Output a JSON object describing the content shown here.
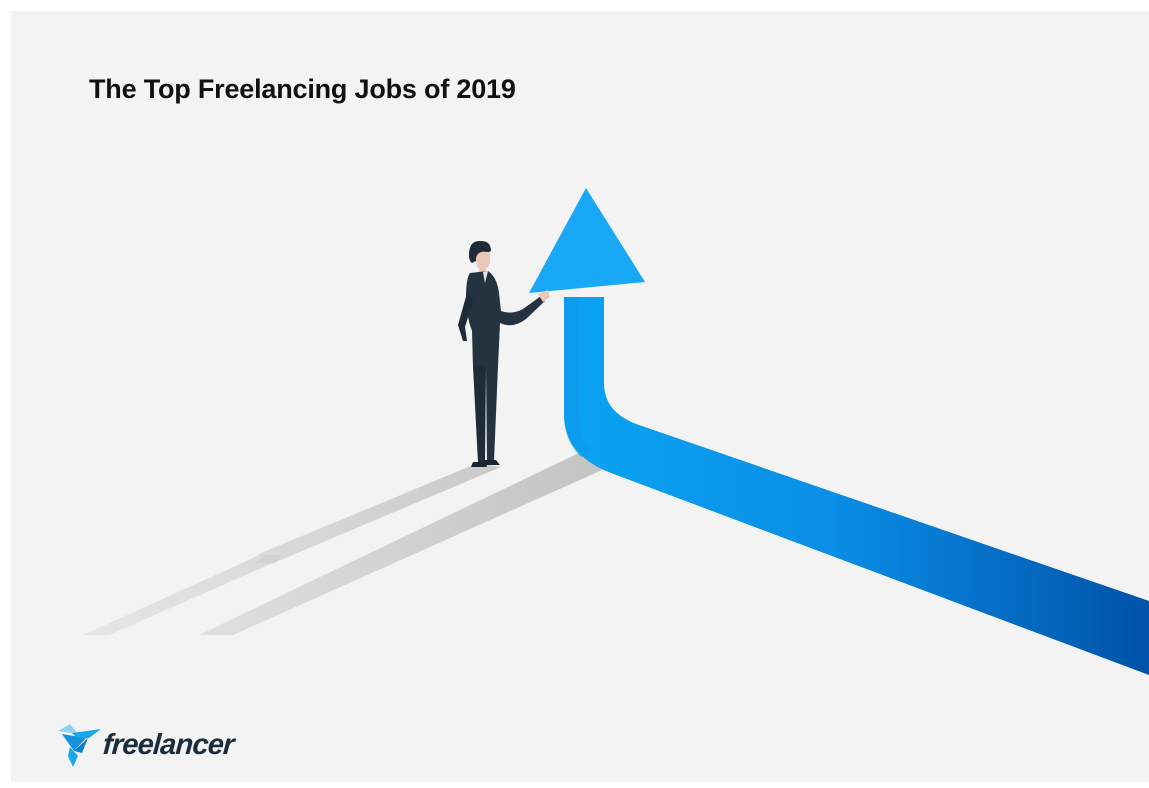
{
  "page": {
    "title": "The Top Freelancing Jobs of 2019",
    "background_color": "#f3f3f3"
  },
  "illustration": {
    "description_icon": "businessman-with-rising-arrow",
    "arrow_colors": [
      "#0aa3f2",
      "#0052a8"
    ],
    "figure_color": "#25323f",
    "shadow_color": "#cfcfcf"
  },
  "brand": {
    "wordmark": "freelancer",
    "icon": "freelancer-bird-logo-icon",
    "accent_color": "#1aa7ec",
    "text_color": "#1c2c3b"
  }
}
